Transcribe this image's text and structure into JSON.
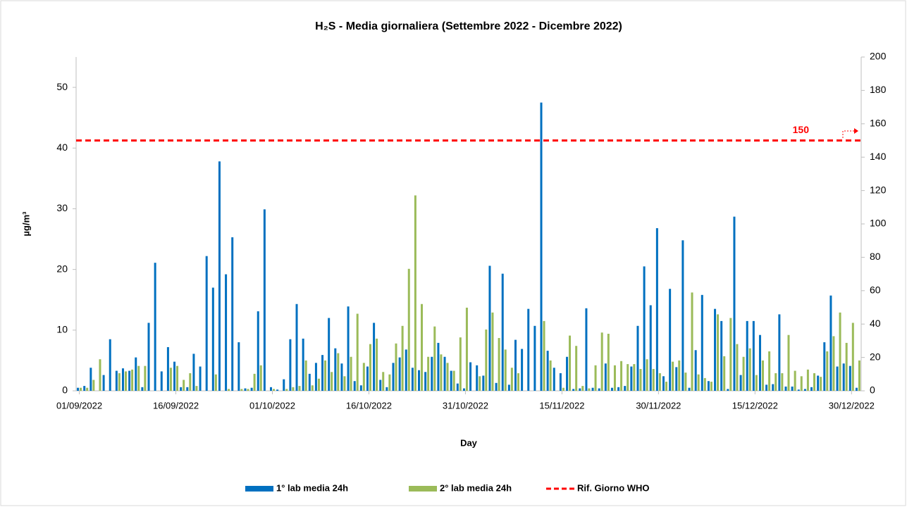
{
  "chart_data": {
    "type": "bar",
    "title": "H₂S - Media giornaliera (Settembre 2022 - Dicembre 2022)",
    "y_label": "µg/m³",
    "x_label": "Day",
    "categories": [
      "01/09/2022",
      null,
      null,
      null,
      null,
      null,
      null,
      null,
      null,
      null,
      null,
      null,
      null,
      null,
      null,
      "16/09/2022",
      null,
      null,
      null,
      null,
      null,
      null,
      null,
      null,
      null,
      null,
      null,
      null,
      null,
      null,
      "01/10/2022",
      null,
      null,
      null,
      null,
      null,
      null,
      null,
      null,
      null,
      null,
      null,
      null,
      null,
      null,
      "16/10/2022",
      null,
      null,
      null,
      null,
      null,
      null,
      null,
      null,
      null,
      null,
      null,
      null,
      null,
      null,
      "31/10/2022",
      null,
      null,
      null,
      null,
      null,
      null,
      null,
      null,
      null,
      null,
      null,
      null,
      null,
      null,
      "15/11/2022",
      null,
      null,
      null,
      null,
      null,
      null,
      null,
      null,
      null,
      null,
      null,
      null,
      null,
      null,
      "30/11/2022",
      null,
      null,
      null,
      null,
      null,
      null,
      null,
      null,
      null,
      null,
      null,
      null,
      null,
      null,
      "15/12/2022",
      null,
      null,
      null,
      null,
      null,
      null,
      null,
      null,
      null,
      null,
      null,
      null,
      null,
      null,
      "30/12/2022",
      null
    ],
    "series": [
      {
        "name": "1° lab media 24h",
        "color": "#0070c0",
        "values": [
          0.5,
          0.8,
          3.8,
          0,
          2.6,
          8.5,
          3.3,
          3.7,
          3.3,
          5.5,
          0.6,
          11.2,
          21.1,
          3.2,
          7.2,
          4.8,
          0.6,
          0.6,
          6.1,
          4.0,
          22.2,
          17.0,
          37.8,
          19.2,
          25.3,
          8.0,
          0.4,
          0.5,
          13.1,
          29.9,
          0.6,
          0.2,
          1.9,
          8.5,
          14.3,
          8.6,
          2.8,
          4.6,
          5.9,
          12.0,
          7.0,
          4.5,
          13.9,
          1.6,
          0.9,
          4.0,
          11.2,
          1.8,
          0.6,
          4.6,
          5.5,
          6.8,
          3.8,
          3.4,
          3.1,
          5.6,
          7.9,
          5.6,
          3.3,
          1.2,
          0.4,
          4.7,
          4.2,
          2.5,
          20.6,
          1.3,
          19.3,
          1.0,
          8.4,
          6.9,
          13.5,
          10.7,
          47.5,
          6.6,
          3.8,
          2.9,
          5.6,
          0.3,
          0.4,
          13.6,
          0.5,
          0.4,
          4.5,
          0.5,
          0.6,
          0.8,
          4.0,
          10.7,
          20.5,
          14.1,
          26.8,
          2.4,
          16.8,
          3.9,
          24.8,
          0.5,
          6.7,
          15.8,
          1.6,
          13.5,
          11.5,
          0.3,
          28.7,
          2.6,
          11.5,
          11.5,
          9.2,
          1.0,
          1.1,
          12.6,
          0.7,
          0.7,
          0.2,
          0.3,
          0.6,
          2.5,
          8.0,
          15.7,
          4.0,
          4.5,
          4.1,
          0.5
        ]
      },
      {
        "name": "2° lab media 24h",
        "color": "#9bbb59",
        "values": [
          0.5,
          0.5,
          1.8,
          5.2,
          0,
          0,
          2.9,
          3.2,
          3.5,
          4.1,
          4.1,
          0,
          0,
          0,
          3.8,
          4.1,
          1.8,
          2.9,
          0.8,
          0,
          0,
          2.7,
          0,
          0.3,
          0,
          0.3,
          0.3,
          2.8,
          4.2,
          0,
          0.3,
          0,
          0.3,
          0.6,
          0.8,
          5.0,
          0.9,
          2.0,
          5.0,
          3.1,
          6.2,
          2.4,
          5.6,
          12.7,
          4.6,
          7.7,
          8.6,
          3.1,
          2.7,
          7.8,
          10.7,
          20.1,
          32.2,
          14.3,
          5.6,
          10.6,
          6.0,
          4.6,
          3.3,
          8.8,
          13.7,
          0,
          2.4,
          10.1,
          12.9,
          8.7,
          6.8,
          3.8,
          2.9,
          0,
          0,
          0,
          11.5,
          5.0,
          0,
          0.5,
          9.1,
          7.4,
          0.8,
          0.4,
          4.2,
          9.6,
          9.4,
          4.2,
          4.9,
          4.4,
          4.4,
          3.6,
          5.2,
          3.6,
          2.9,
          1.5,
          4.8,
          5.0,
          3.0,
          16.2,
          2.7,
          2.1,
          1.5,
          12.6,
          5.7,
          12.0,
          7.7,
          5.6,
          7.0,
          2.6,
          5.0,
          6.5,
          2.9,
          2.9,
          9.2,
          3.3,
          2.4,
          3.5,
          2.9,
          2.3,
          6.5,
          9.0,
          12.9,
          7.9,
          11.2,
          5.0
        ]
      }
    ],
    "reference_lines": [
      {
        "name": "Rif. Giorno WHO",
        "value": 150,
        "value_label": "150",
        "axis": "y2",
        "color": "#ff0000"
      }
    ],
    "ylim": [
      0,
      55
    ],
    "yticks": [
      0,
      10,
      20,
      30,
      40,
      50
    ],
    "y2lim": [
      0,
      200
    ],
    "y2ticks": [
      0,
      20,
      40,
      60,
      80,
      100,
      120,
      140,
      160,
      180,
      200
    ],
    "grid": false,
    "legend": "bottom"
  }
}
